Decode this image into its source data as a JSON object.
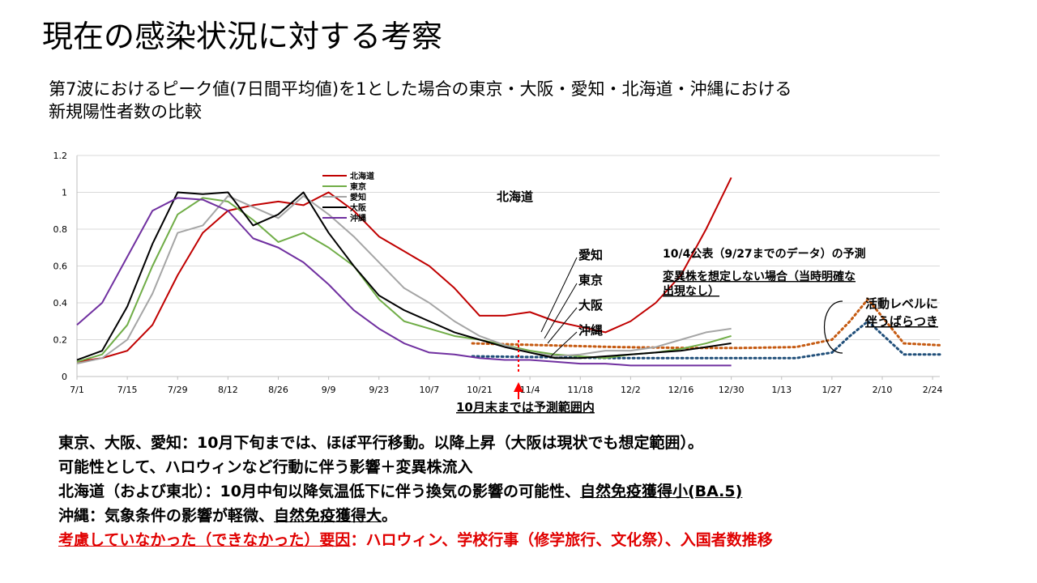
{
  "title": "現在の感染状況に対する考察",
  "subtitle_line1": "第7波におけるピーク値(7日間平均値)を1とした場合の東京・大阪・愛知・北海道・沖縄における",
  "subtitle_line2": "新規陽性者数の比較",
  "chart_data": {
    "type": "line",
    "ylim": [
      0,
      1.2
    ],
    "yticks": [
      "0",
      "0.2",
      "0.4",
      "0.6",
      "0.8",
      "1",
      "1.2"
    ],
    "xtick_labels": [
      "7/1",
      "7/15",
      "7/29",
      "8/12",
      "8/26",
      "9/9",
      "9/23",
      "10/7",
      "10/21",
      "11/4",
      "11/18",
      "12/2",
      "12/16",
      "12/30",
      "1/13",
      "1/27",
      "2/10",
      "2/24"
    ],
    "x_range_days": [
      0,
      240
    ],
    "series": [
      {
        "name": "北海道",
        "color": "#c00000",
        "x": [
          0,
          7,
          14,
          21,
          28,
          35,
          42,
          49,
          56,
          63,
          70,
          77,
          84,
          91,
          98,
          105,
          112,
          119,
          126,
          133,
          140,
          147,
          154,
          161,
          168,
          175,
          182
        ],
        "y": [
          0.08,
          0.1,
          0.14,
          0.28,
          0.55,
          0.78,
          0.9,
          0.93,
          0.95,
          0.93,
          1.0,
          0.9,
          0.76,
          0.68,
          0.6,
          0.48,
          0.33,
          0.33,
          0.35,
          0.3,
          0.27,
          0.24,
          0.3,
          0.4,
          0.55,
          0.8,
          1.08
        ]
      },
      {
        "name": "東京",
        "color": "#70ad47",
        "x": [
          0,
          7,
          14,
          21,
          28,
          35,
          42,
          49,
          56,
          63,
          70,
          77,
          84,
          91,
          98,
          105,
          112,
          119,
          126,
          133,
          140,
          147,
          154,
          161,
          168,
          175,
          182
        ],
        "y": [
          0.08,
          0.12,
          0.28,
          0.6,
          0.88,
          0.97,
          0.95,
          0.85,
          0.73,
          0.78,
          0.7,
          0.6,
          0.42,
          0.3,
          0.26,
          0.22,
          0.2,
          0.17,
          0.14,
          0.12,
          0.11,
          0.1,
          0.12,
          0.13,
          0.15,
          0.18,
          0.22
        ]
      },
      {
        "name": "愛知",
        "color": "#a5a5a5",
        "x": [
          0,
          7,
          14,
          21,
          28,
          35,
          42,
          49,
          56,
          63,
          70,
          77,
          84,
          91,
          98,
          105,
          112,
          119,
          126,
          133,
          140,
          147,
          154,
          161,
          168,
          175,
          182
        ],
        "y": [
          0.07,
          0.1,
          0.2,
          0.45,
          0.78,
          0.82,
          0.98,
          0.92,
          0.86,
          0.98,
          0.88,
          0.76,
          0.62,
          0.48,
          0.4,
          0.3,
          0.22,
          0.17,
          0.13,
          0.11,
          0.12,
          0.14,
          0.14,
          0.16,
          0.2,
          0.24,
          0.26
        ]
      },
      {
        "name": "大阪",
        "color": "#000000",
        "x": [
          0,
          7,
          14,
          21,
          28,
          35,
          42,
          49,
          56,
          63,
          70,
          77,
          84,
          91,
          98,
          105,
          112,
          119,
          126,
          133,
          140,
          147,
          154,
          161,
          168,
          175,
          182
        ],
        "y": [
          0.09,
          0.14,
          0.38,
          0.72,
          1.0,
          0.99,
          1.0,
          0.82,
          0.88,
          1.0,
          0.78,
          0.6,
          0.44,
          0.36,
          0.3,
          0.24,
          0.2,
          0.16,
          0.13,
          0.1,
          0.1,
          0.11,
          0.12,
          0.13,
          0.14,
          0.16,
          0.18
        ]
      },
      {
        "name": "沖縄",
        "color": "#7030a0",
        "x": [
          0,
          7,
          14,
          21,
          28,
          35,
          42,
          49,
          56,
          63,
          70,
          77,
          84,
          91,
          98,
          105,
          112,
          119,
          126,
          133,
          140,
          147,
          154,
          161,
          168,
          175,
          182
        ],
        "y": [
          0.28,
          0.4,
          0.65,
          0.9,
          0.97,
          0.96,
          0.9,
          0.75,
          0.7,
          0.62,
          0.5,
          0.36,
          0.26,
          0.18,
          0.13,
          0.12,
          0.1,
          0.09,
          0.09,
          0.08,
          0.07,
          0.07,
          0.06,
          0.06,
          0.06,
          0.06,
          0.06
        ]
      }
    ],
    "projections": [
      {
        "color": "#c55a11",
        "x": [
          110,
          130,
          150,
          170,
          185,
          200,
          210,
          215,
          220,
          230,
          240
        ],
        "y": [
          0.18,
          0.17,
          0.16,
          0.155,
          0.155,
          0.16,
          0.2,
          0.3,
          0.42,
          0.18,
          0.17
        ]
      },
      {
        "color": "#1f4e79",
        "x": [
          110,
          130,
          150,
          170,
          185,
          200,
          210,
          215,
          220,
          230,
          240
        ],
        "y": [
          0.11,
          0.105,
          0.1,
          0.1,
          0.1,
          0.1,
          0.13,
          0.22,
          0.3,
          0.12,
          0.12
        ]
      }
    ]
  },
  "annotations": {
    "hokkaido": "北海道",
    "aichi": "愛知",
    "tokyo": "東京",
    "osaka": "大阪",
    "okinawa": "沖縄",
    "forecast_line1": "10/4公表（9/27までのデータ）の予測",
    "forecast_line2": "変異株を想定しない場合（当時明確な",
    "forecast_line3": "出現なし）",
    "activity_line1": "活動レベルに",
    "activity_line2": "伴うばらつき",
    "october_note": "10月末までは予測範囲内"
  },
  "bottom": {
    "line1": "東京、大阪、愛知：10月下旬までは、ほぼ平行移動。以降上昇（大阪は現状でも想定範囲）。",
    "line2": "可能性として、ハロウィンなど行動に伴う影響＋変異株流入",
    "line3_a": "北海道（および東北）：10月中旬以降気温低下に伴う換気の影響の可能性、",
    "line3_b": "自然免疫獲得小(BA.5)",
    "line4_a": "沖縄：気象条件の影響が軽微、",
    "line4_b": "自然免疫獲得大",
    "line4_c": "。",
    "line5_a": "考慮していなかった（できなかった）要因",
    "line5_b": "：ハロウィン、学校行事（修学旅行、文化祭）、入国者数推移"
  }
}
